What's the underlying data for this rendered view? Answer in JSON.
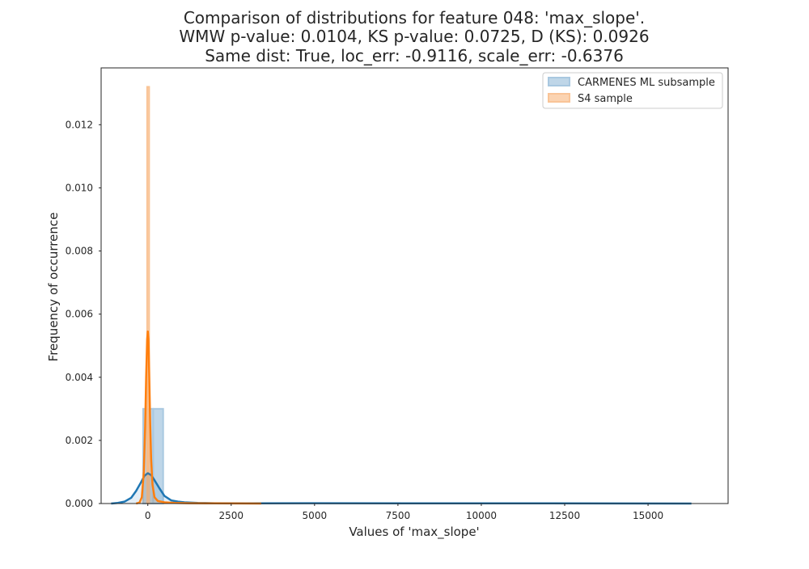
{
  "chart_data": {
    "type": "histogram+kde",
    "title_lines": [
      "Comparison of distributions for feature 048: 'max_slope'.",
      "WMW p-value: 0.0104, KS p-value: 0.0725, D (KS): 0.0926",
      "Same dist: True, loc_err: -0.9116, scale_err: -0.6376"
    ],
    "xlabel": "Values of 'max_slope'",
    "ylabel": "Frequency of occurrence",
    "xlim": [
      -1400,
      17400
    ],
    "ylim": [
      0,
      0.0138
    ],
    "x_ticks": [
      0,
      2500,
      5000,
      7500,
      10000,
      12500,
      15000
    ],
    "x_tick_labels": [
      "0",
      "2500",
      "5000",
      "7500",
      "10000",
      "12500",
      "15000"
    ],
    "y_ticks": [
      0,
      0.002,
      0.004,
      0.006,
      0.008,
      0.01,
      0.012
    ],
    "y_tick_labels": [
      "0.000",
      "0.002",
      "0.004",
      "0.006",
      "0.008",
      "0.010",
      "0.012"
    ],
    "grid": false,
    "legend_position": "upper right",
    "series": [
      {
        "name": "CARMENES ML subsample",
        "color": "#1f77b4",
        "fill_color": "#a9c8e0",
        "histogram": {
          "bins": [
            {
              "x0": -140,
              "x1": 160,
              "height": 0.003
            },
            {
              "x0": 160,
              "x1": 460,
              "height": 0.003
            }
          ]
        },
        "kde": {
          "x": [
            -1100,
            -900,
            -700,
            -500,
            -350,
            -200,
            -100,
            0,
            100,
            200,
            350,
            500,
            700,
            900,
            1100,
            1500,
            2000,
            3000,
            5000,
            8000,
            12000,
            16300
          ],
          "y": [
            0.0,
            2e-05,
            6e-05,
            0.00018,
            0.0004,
            0.00068,
            0.00088,
            0.00096,
            0.0009,
            0.00074,
            0.00048,
            0.00024,
            0.0001,
            6e-05,
            4e-05,
            2e-05,
            1e-05,
            5e-06,
            1e-05,
            5e-06,
            5e-06,
            0.0
          ]
        }
      },
      {
        "name": "S4 sample",
        "color": "#ff7f0e",
        "fill_color": "#f9c497",
        "histogram": {
          "bins": [
            {
              "x0": -20,
              "x1": 40,
              "height": 0.0132
            }
          ]
        },
        "kde": {
          "x": [
            -350,
            -250,
            -180,
            -120,
            -80,
            -50,
            -20,
            0,
            20,
            40,
            70,
            100,
            140,
            200,
            300,
            500,
            800,
            1200,
            2000,
            2800,
            3400
          ],
          "y": [
            0.0,
            3e-05,
            0.0002,
            0.001,
            0.0024,
            0.004,
            0.0052,
            0.00545,
            0.0052,
            0.0042,
            0.0026,
            0.0014,
            0.0006,
            0.0002,
            8e-05,
            4e-05,
            2e-05,
            1e-05,
            5e-06,
            2e-06,
            0.0
          ]
        }
      }
    ]
  }
}
